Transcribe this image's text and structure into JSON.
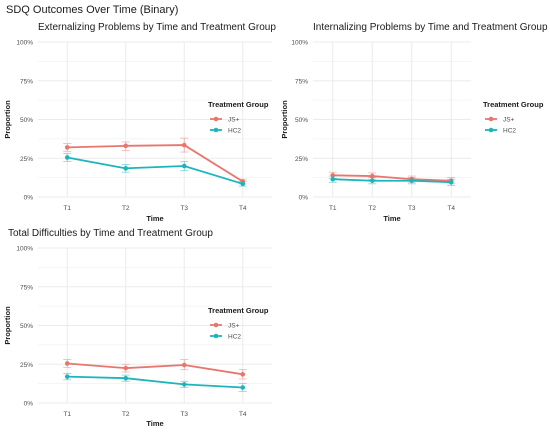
{
  "figure": {
    "title": "SDQ Outcomes Over Time (Binary)"
  },
  "colors": {
    "JS+": "#e8766d",
    "HC2": "#1bb5bc",
    "grid": "#ebebeb",
    "axis_text": "#4d4d4d",
    "title_text": "#1a1a1a"
  },
  "chart_data": [
    {
      "type": "line",
      "title": "Externalizing Problems by Time and Treatment Group",
      "xlabel": "Time",
      "ylabel": "Proportion",
      "categories": [
        "T1",
        "T2",
        "T3",
        "T4"
      ],
      "ylim": [
        0,
        1
      ],
      "yticks": [
        "0%",
        "25%",
        "50%",
        "75%",
        "100%"
      ],
      "grid": true,
      "legend": {
        "title": "Treatment Group",
        "placement": "right"
      },
      "series": [
        {
          "name": "JS+",
          "values": [
            0.32,
            0.33,
            0.335,
            0.1
          ],
          "lower": [
            0.295,
            0.3,
            0.29,
            0.085
          ],
          "upper": [
            0.345,
            0.355,
            0.38,
            0.115
          ]
        },
        {
          "name": "HC2",
          "values": [
            0.255,
            0.185,
            0.2,
            0.085
          ],
          "lower": [
            0.23,
            0.16,
            0.17,
            0.07
          ],
          "upper": [
            0.28,
            0.21,
            0.23,
            0.1
          ]
        }
      ]
    },
    {
      "type": "line",
      "title": "Internalizing Problems by Time and Treatment Group",
      "xlabel": "Time",
      "ylabel": "Proportion",
      "categories": [
        "T1",
        "T2",
        "T3",
        "T4"
      ],
      "ylim": [
        0,
        1
      ],
      "yticks": [
        "0%",
        "25%",
        "50%",
        "75%",
        "100%"
      ],
      "grid": true,
      "legend": {
        "title": "Treatment Group",
        "placement": "right"
      },
      "series": [
        {
          "name": "JS+",
          "values": [
            0.14,
            0.135,
            0.115,
            0.105
          ],
          "lower": [
            0.12,
            0.115,
            0.095,
            0.085
          ],
          "upper": [
            0.16,
            0.155,
            0.135,
            0.125
          ]
        },
        {
          "name": "HC2",
          "values": [
            0.115,
            0.105,
            0.105,
            0.095
          ],
          "lower": [
            0.095,
            0.085,
            0.085,
            0.075
          ],
          "upper": [
            0.135,
            0.125,
            0.125,
            0.115
          ]
        }
      ]
    },
    {
      "type": "line",
      "title": "Total Difficulties by Time and Treatment Group",
      "xlabel": "Time",
      "ylabel": "Proportion",
      "categories": [
        "T1",
        "T2",
        "T3",
        "T4"
      ],
      "ylim": [
        0,
        1
      ],
      "yticks": [
        "0%",
        "25%",
        "50%",
        "75%",
        "100%"
      ],
      "grid": true,
      "legend": {
        "title": "Treatment Group",
        "placement": "right"
      },
      "series": [
        {
          "name": "JS+",
          "values": [
            0.255,
            0.225,
            0.245,
            0.185
          ],
          "lower": [
            0.23,
            0.2,
            0.215,
            0.155
          ],
          "upper": [
            0.28,
            0.25,
            0.28,
            0.215
          ]
        },
        {
          "name": "HC2",
          "values": [
            0.17,
            0.16,
            0.12,
            0.1
          ],
          "lower": [
            0.15,
            0.14,
            0.1,
            0.075
          ],
          "upper": [
            0.19,
            0.18,
            0.14,
            0.125
          ]
        }
      ]
    }
  ]
}
